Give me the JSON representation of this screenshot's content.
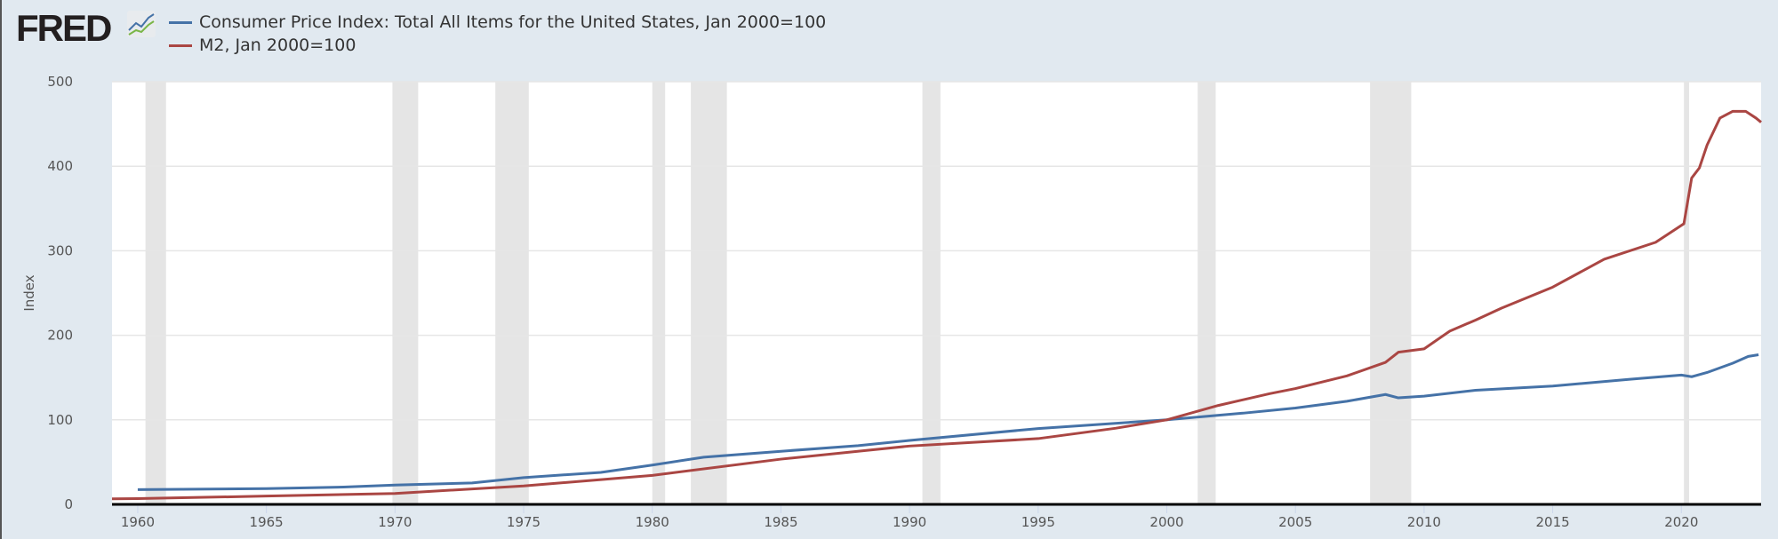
{
  "brand": {
    "logo": "FRED"
  },
  "chart_data": {
    "type": "line",
    "ylabel": "Index",
    "xlabel": "",
    "xlim": [
      1959.0,
      2023.1
    ],
    "ylim": [
      0,
      500
    ],
    "yticks": [
      0,
      100,
      200,
      300,
      400,
      500
    ],
    "xticks": [
      1960,
      1965,
      1970,
      1975,
      1980,
      1985,
      1990,
      1995,
      2000,
      2005,
      2010,
      2015,
      2020
    ],
    "grid": true,
    "legend": "top-left",
    "recessions": [
      [
        1960.3,
        1961.1
      ],
      [
        1969.9,
        1970.9
      ],
      [
        1973.9,
        1975.2
      ],
      [
        1980.0,
        1980.5
      ],
      [
        1981.5,
        1982.9
      ],
      [
        1990.5,
        1991.2
      ],
      [
        2001.2,
        2001.9
      ],
      [
        2007.9,
        2009.5
      ],
      [
        2020.1,
        2020.3
      ]
    ],
    "series": [
      {
        "name": "Consumer Price Index: Total All Items for the United States, Jan 2000=100",
        "color": "#4572a7",
        "x": [
          1960,
          1965,
          1968,
          1970,
          1973,
          1975,
          1978,
          1980,
          1982,
          1985,
          1988,
          1990,
          1995,
          2000,
          2003,
          2005,
          2007,
          2008.5,
          2009,
          2010,
          2012,
          2015,
          2018,
          2020,
          2020.4,
          2021,
          2022,
          2022.6,
          2023
        ],
        "y": [
          17.4,
          18.6,
          20.5,
          22.8,
          25.3,
          31.7,
          37.8,
          46.5,
          55.8,
          62.8,
          69.5,
          75.6,
          89.7,
          100,
          108,
          114,
          122,
          130,
          126,
          128,
          135,
          140,
          148,
          153,
          151,
          156,
          167,
          175,
          177
        ]
      },
      {
        "name": "M2, Jan 2000=100",
        "color": "#aa4643",
        "x": [
          1959,
          1960,
          1965,
          1970,
          1975,
          1980,
          1985,
          1990,
          1995,
          1998,
          2000,
          2002,
          2004,
          2005,
          2007,
          2008.5,
          2009,
          2010,
          2011,
          2012,
          2013,
          2015,
          2017,
          2019,
          2020.1,
          2020.4,
          2020.7,
          2021,
          2021.5,
          2022,
          2022.5,
          2022.9,
          2023.1
        ],
        "y": [
          6.5,
          6.8,
          9.8,
          12.9,
          21.8,
          34.3,
          53.5,
          69,
          77.8,
          90,
          100,
          117,
          131,
          137,
          152,
          168,
          180,
          184,
          205,
          218,
          232,
          257,
          290,
          310,
          332,
          386,
          398,
          425,
          457,
          465,
          465,
          457,
          452
        ]
      }
    ]
  }
}
